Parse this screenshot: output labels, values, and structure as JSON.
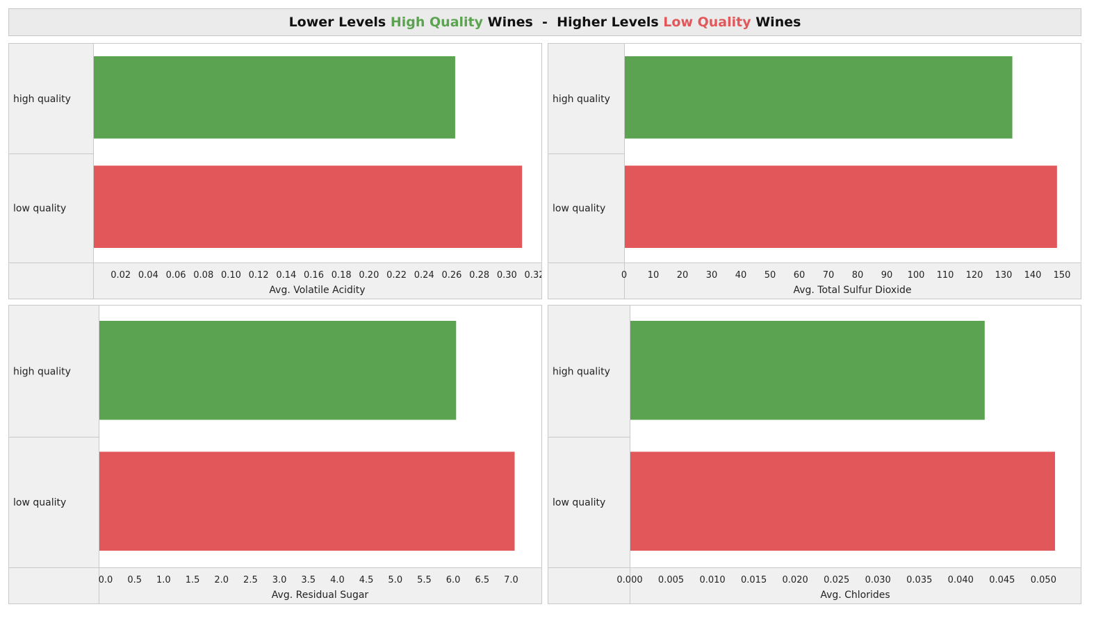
{
  "title": {
    "part1": "Lower Levels ",
    "part2": "High Quality",
    "part3": " Wines  -  Higher Levels ",
    "part4": "Low Quality",
    "part5": " Wines"
  },
  "colors": {
    "high_quality": "#5ba350",
    "low_quality": "#e1575a",
    "title_text": "#111111",
    "label_panel_bg": "#f0f0f0"
  },
  "chart_data": [
    {
      "type": "bar",
      "orientation": "horizontal",
      "categories": [
        "high quality",
        "low quality"
      ],
      "values": [
        0.2625,
        0.311
      ],
      "xlabel": "Avg. Volatile Acidity",
      "xlim": [
        0.0,
        0.322
      ],
      "ticks": [
        0.02,
        0.04,
        0.06,
        0.08,
        0.1,
        0.12,
        0.14,
        0.16,
        0.18,
        0.2,
        0.22,
        0.24,
        0.26,
        0.28,
        0.3,
        0.32
      ],
      "tick_labels": [
        "0.02",
        "0.04",
        "0.06",
        "0.08",
        "0.10",
        "0.12",
        "0.14",
        "0.16",
        "0.18",
        "0.20",
        "0.22",
        "0.24",
        "0.26",
        "0.28",
        "0.30",
        "0.32"
      ],
      "grid": false
    },
    {
      "type": "bar",
      "orientation": "horizontal",
      "categories": [
        "high quality",
        "low quality"
      ],
      "values": [
        133,
        148.3
      ],
      "xlabel": "Avg. Total Sulfur Dioxide",
      "xlim": [
        0,
        155
      ],
      "ticks": [
        0,
        10,
        20,
        30,
        40,
        50,
        60,
        70,
        80,
        90,
        100,
        110,
        120,
        130,
        140,
        150
      ],
      "tick_labels": [
        "0",
        "10",
        "20",
        "30",
        "40",
        "50",
        "60",
        "70",
        "80",
        "90",
        "100",
        "110",
        "120",
        "130",
        "140",
        "150"
      ],
      "grid": false
    },
    {
      "type": "bar",
      "orientation": "horizontal",
      "categories": [
        "high quality",
        "low quality"
      ],
      "values": [
        6.05,
        7.06
      ],
      "xlabel": "Avg. Residual Sugar",
      "xlim": [
        -0.12,
        7.45
      ],
      "ticks": [
        0.0,
        0.5,
        1.0,
        1.5,
        2.0,
        2.5,
        3.0,
        3.5,
        4.0,
        4.5,
        5.0,
        5.5,
        6.0,
        6.5,
        7.0
      ],
      "tick_labels": [
        "0.0",
        "0.5",
        "1.0",
        "1.5",
        "2.0",
        "2.5",
        "3.0",
        "3.5",
        "4.0",
        "4.5",
        "5.0",
        "5.5",
        "6.0",
        "6.5",
        "7.0"
      ],
      "grid": false
    },
    {
      "type": "bar",
      "orientation": "horizontal",
      "categories": [
        "high quality",
        "low quality"
      ],
      "values": [
        0.0429,
        0.0514
      ],
      "xlabel": "Avg. Chlorides",
      "xlim": [
        0.0,
        0.054
      ],
      "ticks": [
        0.0,
        0.005,
        0.01,
        0.015,
        0.02,
        0.025,
        0.03,
        0.035,
        0.04,
        0.045,
        0.05
      ],
      "tick_labels": [
        "0.000",
        "0.005",
        "0.010",
        "0.015",
        "0.020",
        "0.025",
        "0.030",
        "0.035",
        "0.040",
        "0.045",
        "0.050"
      ],
      "grid": false
    }
  ]
}
